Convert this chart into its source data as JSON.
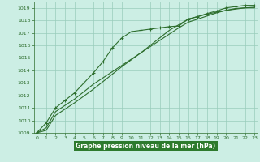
{
  "title": "Graphe pression niveau de la mer (hPa)",
  "bg_color": "#cceee4",
  "bottom_bar_color": "#2d7a2d",
  "grid_color": "#99ccbb",
  "line_color": "#2d6e2d",
  "marker_color": "#2d6e2d",
  "xlim": [
    -0.3,
    23.3
  ],
  "ylim": [
    1009,
    1019.5
  ],
  "xticks": [
    0,
    1,
    2,
    3,
    4,
    5,
    6,
    7,
    8,
    9,
    10,
    11,
    12,
    13,
    14,
    15,
    16,
    17,
    18,
    19,
    20,
    21,
    22,
    23
  ],
  "yticks": [
    1009,
    1010,
    1011,
    1012,
    1013,
    1014,
    1015,
    1016,
    1017,
    1018,
    1019
  ],
  "series1_x": [
    0,
    1,
    2,
    3,
    4,
    5,
    6,
    7,
    8,
    9,
    10,
    11,
    12,
    13,
    14,
    15,
    16,
    17,
    18,
    19,
    20,
    21,
    22,
    23
  ],
  "series1_y": [
    1009.0,
    1009.8,
    1011.0,
    1011.6,
    1012.2,
    1013.0,
    1013.8,
    1014.7,
    1015.8,
    1016.6,
    1017.1,
    1017.2,
    1017.3,
    1017.4,
    1017.5,
    1017.55,
    1018.1,
    1018.3,
    1018.55,
    1018.75,
    1019.0,
    1019.1,
    1019.2,
    1019.2
  ],
  "series2_x": [
    0,
    1,
    2,
    3,
    4,
    5,
    6,
    7,
    8,
    9,
    10,
    11,
    12,
    13,
    14,
    15,
    16,
    17,
    18,
    19,
    20,
    21,
    22,
    23
  ],
  "series2_y": [
    1009.0,
    1009.4,
    1010.7,
    1011.2,
    1011.7,
    1012.3,
    1012.9,
    1013.4,
    1013.9,
    1014.4,
    1014.9,
    1015.4,
    1015.9,
    1016.4,
    1016.9,
    1017.4,
    1017.85,
    1018.1,
    1018.35,
    1018.6,
    1018.8,
    1018.9,
    1019.0,
    1019.05
  ],
  "series3_x": [
    0,
    1,
    2,
    3,
    4,
    5,
    6,
    7,
    8,
    9,
    10,
    11,
    12,
    13,
    14,
    15,
    16,
    17,
    18,
    19,
    20,
    21,
    22,
    23
  ],
  "series3_y": [
    1009.0,
    1009.2,
    1010.4,
    1010.9,
    1011.4,
    1011.95,
    1012.5,
    1013.1,
    1013.7,
    1014.3,
    1014.85,
    1015.4,
    1016.0,
    1016.6,
    1017.2,
    1017.65,
    1018.1,
    1018.3,
    1018.5,
    1018.65,
    1018.8,
    1018.95,
    1019.0,
    1019.0
  ]
}
